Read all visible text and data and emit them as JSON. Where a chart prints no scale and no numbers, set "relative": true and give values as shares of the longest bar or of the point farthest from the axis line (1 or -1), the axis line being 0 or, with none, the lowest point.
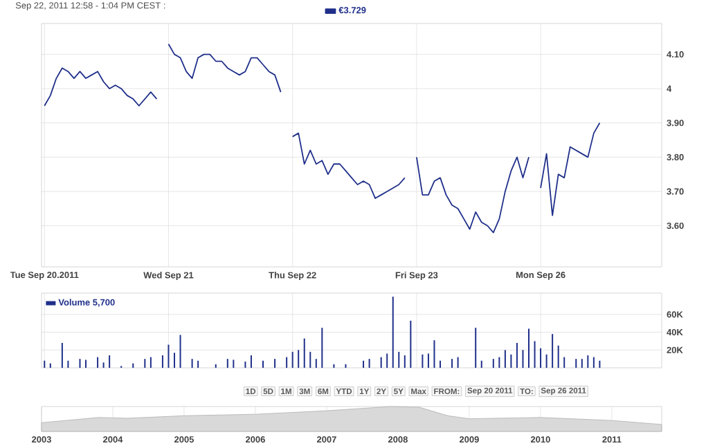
{
  "chart_data": [
    {
      "type": "line",
      "title": "Sep 22, 2011 12:58 - 1:04 PM CEST :",
      "categories": [
        "Tue Sep 20.2011",
        null,
        null,
        null,
        null,
        null,
        null,
        null,
        null,
        null,
        null,
        null,
        null,
        null,
        null,
        null,
        null,
        null,
        null,
        null,
        null,
        "Wed Sep 21",
        null,
        null,
        null,
        null,
        null,
        null,
        null,
        null,
        null,
        null,
        null,
        null,
        null,
        null,
        null,
        null,
        null,
        null,
        null,
        null,
        "Thu Sep 22",
        null,
        null,
        null,
        null,
        null,
        null,
        null,
        null,
        null,
        null,
        null,
        null,
        null,
        null,
        null,
        null,
        null,
        null,
        null,
        null,
        "Fri Sep 23",
        null,
        null,
        null,
        null,
        null,
        null,
        null,
        null,
        null,
        null,
        null,
        null,
        null,
        null,
        null,
        null,
        null,
        null,
        null,
        null,
        "Mon Sep 26",
        null,
        null,
        null,
        null,
        null,
        null,
        null,
        null,
        null,
        null,
        null,
        null,
        null,
        null,
        null,
        null,
        null,
        null,
        null,
        null
      ],
      "series": [
        {
          "name": "€3.729",
          "color": "#1f2f8a",
          "values": [
            3.95,
            3.98,
            4.03,
            4.06,
            4.05,
            4.03,
            4.05,
            4.03,
            4.04,
            4.05,
            4.02,
            4.0,
            4.01,
            4.0,
            3.98,
            3.97,
            3.95,
            3.97,
            3.99,
            3.97,
            null,
            4.13,
            4.1,
            4.09,
            4.05,
            4.03,
            4.09,
            4.1,
            4.1,
            4.08,
            4.08,
            4.06,
            4.05,
            4.04,
            4.05,
            4.09,
            4.09,
            4.07,
            4.05,
            4.04,
            3.99,
            null,
            3.86,
            3.87,
            3.78,
            3.82,
            3.78,
            3.79,
            3.75,
            3.78,
            3.78,
            3.76,
            3.74,
            3.72,
            3.73,
            3.72,
            3.68,
            3.69,
            3.7,
            3.71,
            3.72,
            3.74,
            null,
            3.8,
            3.69,
            3.69,
            3.73,
            3.74,
            3.69,
            3.66,
            3.65,
            3.62,
            3.59,
            3.64,
            3.61,
            3.6,
            3.58,
            3.62,
            3.7,
            3.76,
            3.8,
            3.74,
            3.8,
            null,
            3.71,
            3.81,
            3.63,
            3.75,
            3.74,
            3.83,
            3.82,
            3.81,
            3.8,
            3.87,
            3.9,
            null,
            null,
            null,
            null,
            null,
            null,
            null,
            null,
            null,
            null
          ]
        }
      ],
      "ylim": [
        3.48,
        4.19
      ],
      "yticks": [
        {
          "value": 3.6,
          "label": "3.60"
        },
        {
          "value": 3.7,
          "label": "3.70"
        },
        {
          "value": 3.8,
          "label": "3.80"
        },
        {
          "value": 3.9,
          "label": "3.90"
        },
        4,
        {
          "value": 4.1,
          "label": "4.10"
        }
      ],
      "grid": true,
      "legend": "top",
      "marker": "none",
      "line_style": "solid"
    },
    {
      "type": "bar",
      "categories": [
        null,
        null,
        null,
        null,
        null,
        null,
        null,
        null,
        null,
        null,
        null,
        null,
        null,
        null,
        null,
        null,
        null,
        null,
        null,
        null,
        null,
        null,
        null,
        null,
        null,
        null,
        null,
        null,
        null,
        null,
        null,
        null,
        null,
        null,
        null,
        null,
        null,
        null,
        null,
        null,
        null,
        null,
        null,
        null,
        null,
        null,
        null,
        null,
        null,
        null,
        null,
        null,
        null,
        null,
        null,
        null,
        null,
        null,
        null,
        null,
        null,
        null,
        null,
        null,
        null,
        null,
        null,
        null,
        null,
        null,
        null,
        null,
        null,
        null,
        null,
        null,
        null,
        null,
        null,
        null,
        null,
        null,
        null,
        null,
        null,
        null,
        null,
        null,
        null,
        null,
        null,
        null,
        null,
        null,
        null,
        null,
        null,
        null,
        null,
        null,
        null,
        null,
        null,
        null,
        null
      ],
      "series": [
        {
          "name": "Volume 5,700",
          "color": "#1f2f8a",
          "values": [
            8000,
            5000,
            null,
            28000,
            8000,
            null,
            10000,
            9000,
            null,
            12000,
            6000,
            14000,
            null,
            2000,
            null,
            5000,
            null,
            10000,
            12000,
            null,
            14000,
            26000,
            17000,
            37000,
            null,
            10000,
            8000,
            null,
            null,
            4000,
            null,
            10000,
            9000,
            null,
            7000,
            14000,
            null,
            8000,
            null,
            10000,
            null,
            12000,
            18000,
            20000,
            33000,
            18000,
            10000,
            45000,
            null,
            4000,
            null,
            4000,
            null,
            null,
            8000,
            10000,
            null,
            12000,
            16000,
            80000,
            18000,
            14000,
            53000,
            null,
            15000,
            16000,
            31000,
            8000,
            null,
            10000,
            12000,
            null,
            null,
            45000,
            8000,
            null,
            10000,
            12000,
            20000,
            15000,
            28000,
            20000,
            44000,
            30000,
            22000,
            15000,
            38000,
            25000,
            12000,
            null,
            10000,
            10000,
            14000,
            12000,
            8000,
            null,
            null,
            null,
            null,
            null,
            null,
            null,
            null,
            null,
            null
          ]
        }
      ],
      "ylim": [
        0,
        84000
      ],
      "yticks": [
        {
          "value": 20000,
          "label": "20K"
        },
        {
          "value": 40000,
          "label": "40K"
        },
        {
          "value": 60000,
          "label": "60K"
        }
      ],
      "grid": true,
      "legend": "top left"
    },
    {
      "type": "area",
      "relative": true,
      "series": [
        {
          "color": "#d9d9d9",
          "x": [
            2003,
            2003.8,
            2004.2,
            2005,
            2006,
            2006.5,
            2007,
            2007.9,
            2008.3,
            2008.7,
            2009,
            2010,
            2011,
            2011.7
          ],
          "values": [
            0.35,
            0.56,
            0.53,
            0.63,
            0.69,
            0.76,
            0.83,
            1,
            0.97,
            0.63,
            0.51,
            0.56,
            0.44,
            0.28
          ]
        }
      ],
      "xlim": [
        2003,
        2011.7
      ],
      "xticks": [
        2003,
        2004,
        2005,
        2006,
        2007,
        2008,
        2009,
        2010,
        2011
      ],
      "grid": "x",
      "tick_labels": "x",
      "annotations": [
        "1D",
        "5D",
        "1M",
        "3M",
        "6M",
        "YTD",
        "1Y",
        "2Y",
        "5Y",
        "Max",
        "FROM:",
        "Sep 20 2011",
        "TO:",
        "Sep 26 2011"
      ]
    }
  ]
}
